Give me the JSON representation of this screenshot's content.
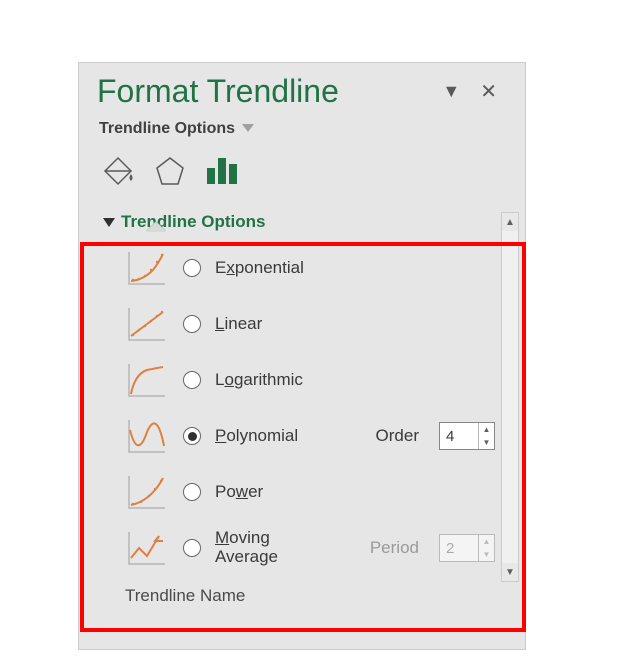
{
  "colors": {
    "accent": "#217346",
    "chart_line": "#e08040",
    "axis": "#aaaaaa",
    "panel_bg": "#e6e6e6",
    "highlight_border": "#ff0000"
  },
  "panel": {
    "title": "Format Trendline",
    "dropdown_label": "Trendline Options",
    "close_glyph": "✕",
    "menu_glyph": "▼"
  },
  "tabs": {
    "fill_icon": "paint-bucket",
    "effects_icon": "pentagon",
    "chart_icon": "bar-chart",
    "active": "chart"
  },
  "section": {
    "title": "Trendline Options",
    "expanded": true
  },
  "options": [
    {
      "id": "exponential",
      "label_pre": "E",
      "label_ul": "x",
      "label_post": "ponential",
      "selected": false,
      "thumb": "exp"
    },
    {
      "id": "linear",
      "label_pre": "",
      "label_ul": "L",
      "label_post": "inear",
      "selected": false,
      "thumb": "lin"
    },
    {
      "id": "logarithmic",
      "label_pre": "L",
      "label_ul": "o",
      "label_post": "garithmic",
      "selected": false,
      "thumb": "log"
    },
    {
      "id": "polynomial",
      "label_pre": "",
      "label_ul": "P",
      "label_post": "olynomial",
      "selected": true,
      "thumb": "poly",
      "field": {
        "label_pre": "Or",
        "label_ul": "d",
        "label_post": "er",
        "value": "4",
        "enabled": true
      }
    },
    {
      "id": "power",
      "label_pre": "Po",
      "label_ul": "w",
      "label_post": "er",
      "selected": false,
      "thumb": "pow"
    },
    {
      "id": "moving",
      "label_pre": "",
      "label_ul": "M",
      "label_post": "oving Average",
      "selected": false,
      "thumb": "mov",
      "multiline": true,
      "field": {
        "label_pre": "P",
        "label_ul": "e",
        "label_post": "riod",
        "value": "2",
        "enabled": false
      }
    }
  ],
  "footer": {
    "label": "Trendline Name"
  },
  "thumb_style": {
    "axis_color": "#b5b5b5",
    "axis_width": 1.5,
    "curve_color": "#e08040",
    "curve_width": 2,
    "dot_color": "#e08040",
    "dot_r": 1.2
  }
}
